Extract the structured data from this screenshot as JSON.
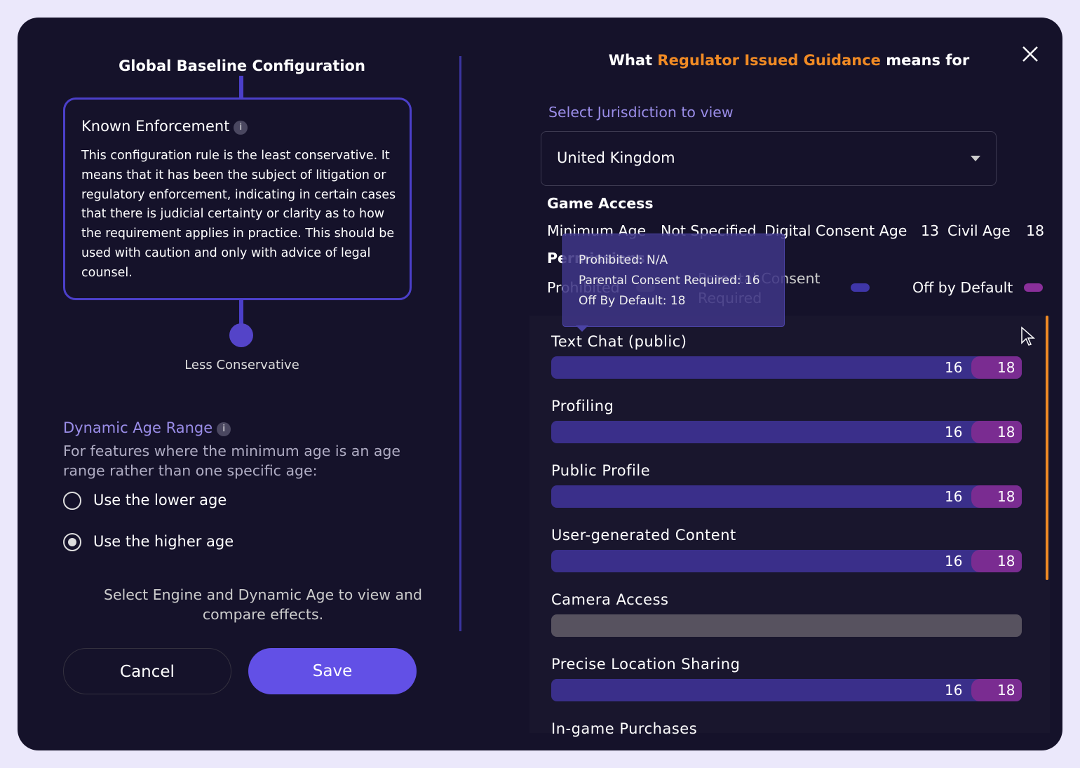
{
  "left": {
    "title": "Global Baseline Configuration",
    "card": {
      "title": "Known Enforcement",
      "body": "This configuration rule is the least conservative. It means that it has been the subject of litigation or regulatory enforcement, indicating in certain cases that there is judicial certainty or clarity as to how the requirement applies in practice. This should be used with caution and only with advice of legal counsel."
    },
    "slider_label": "Less Conservative",
    "dynamic": {
      "title": "Dynamic Age Range",
      "description": "For features where the minimum age is an age range rather than one specific age:",
      "options": [
        {
          "label": "Use the lower age",
          "selected": false
        },
        {
          "label": "Use the higher age",
          "selected": true
        }
      ]
    },
    "hint": "Select Engine and Dynamic Age to view and compare effects.",
    "buttons": {
      "cancel": "Cancel",
      "save": "Save"
    }
  },
  "right": {
    "heading": {
      "prefix": "What",
      "highlight": "Regulator Issued Guidance",
      "suffix": "means for"
    },
    "select_label": "Select Jurisdiction to view",
    "jurisdiction": "United Kingdom",
    "game_access": {
      "title": "Game Access",
      "minimum_age_label": "Minimum Age",
      "minimum_age": "Not Specified",
      "digital_consent_label": "Digital Consent Age",
      "digital_consent": "13",
      "civil_age_label": "Civil Age",
      "civil_age": "18"
    },
    "permissions": {
      "title": "Permissions",
      "legend": [
        "Prohibited",
        "Parental Consent Required",
        "Off by Default"
      ]
    },
    "tooltip": [
      "Prohibited: N/A",
      "Parental Consent Required: 16",
      "Off By Default: 18"
    ],
    "features": [
      {
        "name": "Text Chat (public)",
        "consent": "16",
        "off_default": "18"
      },
      {
        "name": "Profiling",
        "consent": "16",
        "off_default": "18"
      },
      {
        "name": "Public Profile",
        "consent": "16",
        "off_default": "18"
      },
      {
        "name": "User-generated Content",
        "consent": "16",
        "off_default": "18"
      },
      {
        "name": "Camera Access",
        "consent": null,
        "off_default": null
      },
      {
        "name": "Precise Location Sharing",
        "consent": "16",
        "off_default": "18"
      },
      {
        "name": "In-game Purchases",
        "consent": null,
        "off_default": null
      }
    ]
  }
}
